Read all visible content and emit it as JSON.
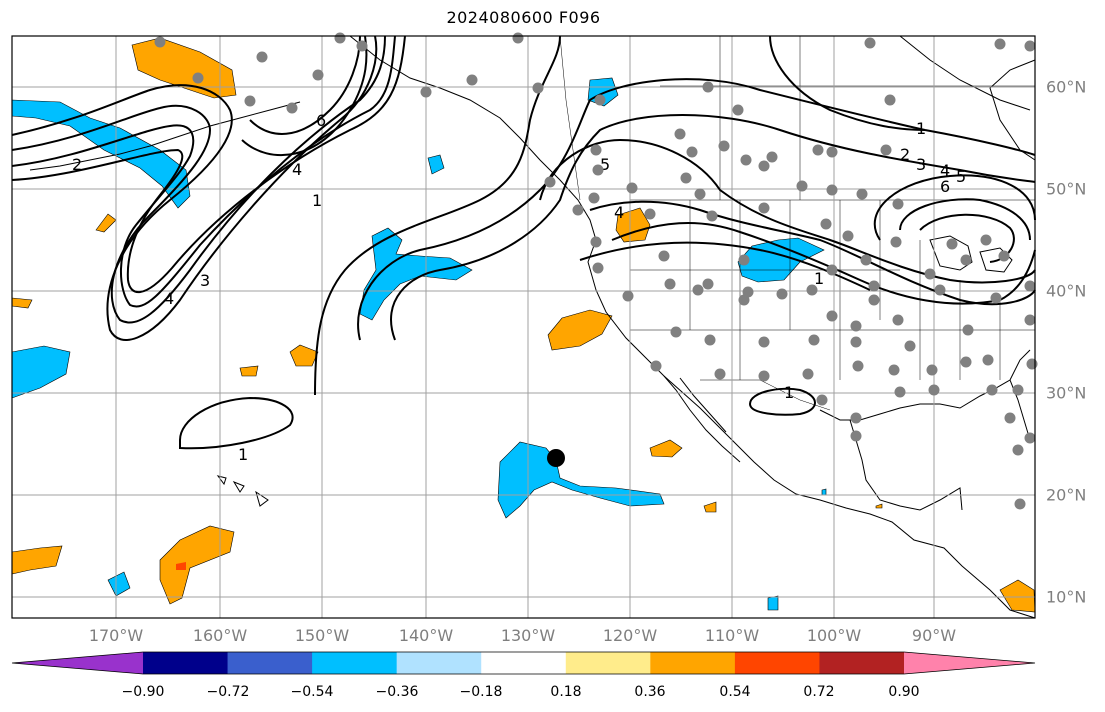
{
  "title": "2024080600 F096",
  "map": {
    "lon_labels": [
      "170°W",
      "160°W",
      "150°W",
      "140°W",
      "130°W",
      "120°W",
      "110°W",
      "100°W",
      "90°W"
    ],
    "lat_labels": [
      "60°N",
      "50°N",
      "40°N",
      "30°N",
      "20°N",
      "10°N"
    ],
    "contour_labels": [
      "1",
      "2",
      "3",
      "4",
      "5",
      "6"
    ],
    "grid": true,
    "land_color": "#ffffff",
    "grid_color": "#a0a0a0",
    "station_dot_color": "#808080",
    "marker_color": "#000000"
  },
  "colorbar": {
    "ticks": [
      "−0.90",
      "−0.72",
      "−0.54",
      "−0.36",
      "−0.18",
      "0.18",
      "0.36",
      "0.54",
      "0.72",
      "0.90"
    ],
    "colors": [
      "#9932cc",
      "#00008b",
      "#3a5fcd",
      "#00bfff",
      "#b0e2ff",
      "#ffffff",
      "#ffec8b",
      "#ffa500",
      "#ff4500",
      "#b22222",
      "#ff82ab"
    ]
  }
}
